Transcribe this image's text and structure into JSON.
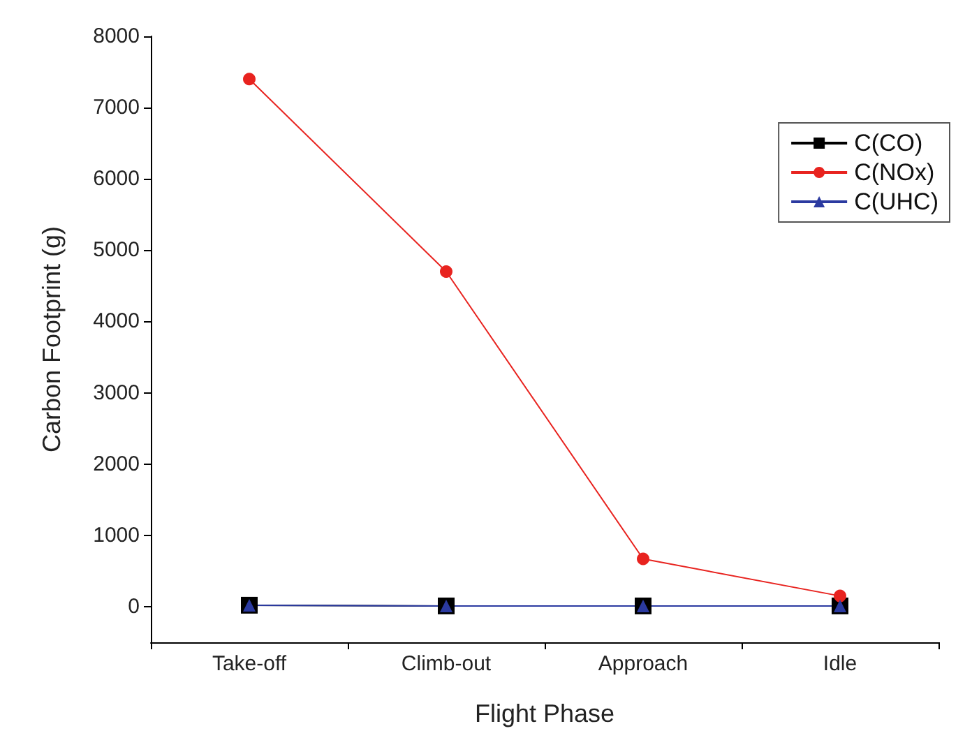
{
  "chart_data": {
    "type": "line",
    "xlabel": "Flight Phase",
    "ylabel": "Carbon Footprint (g)",
    "categories": [
      "Take-off",
      "Climb-out",
      "Approach",
      "Idle"
    ],
    "series": [
      {
        "name": "C(CO)",
        "color": "#000000",
        "marker": "square",
        "values": [
          20,
          10,
          10,
          10
        ]
      },
      {
        "name": "C(NOx)",
        "color": "#e8231f",
        "marker": "circle",
        "values": [
          7400,
          4700,
          670,
          150
        ]
      },
      {
        "name": "C(UHC)",
        "color": "#2b3aa0",
        "marker": "triangle",
        "values": [
          20,
          10,
          10,
          10
        ]
      }
    ],
    "ylim": [
      -500,
      8000
    ],
    "yticks": [
      0,
      1000,
      2000,
      3000,
      4000,
      5000,
      6000,
      7000,
      8000
    ],
    "grid": false,
    "legend": "top right",
    "line_style": "solid"
  }
}
